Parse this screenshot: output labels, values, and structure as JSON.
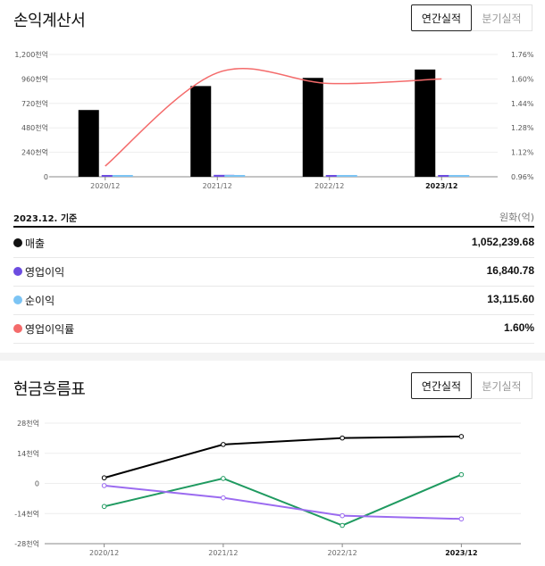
{
  "income": {
    "title": "손익계산서",
    "toggle": {
      "annual": "연간실적",
      "quarterly": "분기실적"
    },
    "ref_date": "2023.12. 기준",
    "unit": "원화(억)",
    "rows": [
      {
        "label": "매출",
        "value": "1,052,239.68",
        "color": "#111111"
      },
      {
        "label": "영업이익",
        "value": "16,840.78",
        "color": "#6c4ce0"
      },
      {
        "label": "순이익",
        "value": "13,115.60",
        "color": "#7cc4f4"
      },
      {
        "label": "영업이익률",
        "value": "1.60%",
        "color": "#f46b6b"
      }
    ]
  },
  "cash": {
    "title": "현금흐름표",
    "toggle": {
      "annual": "연간실적",
      "quarterly": "분기실적"
    }
  },
  "chart_data": [
    {
      "type": "bar",
      "categories": [
        "2020/12",
        "2021/12",
        "2022/12",
        "2023/12"
      ],
      "highlight_category": "2023/12",
      "y_ticks": [
        "0",
        "240천억",
        "480천억",
        "720천억",
        "960천억",
        "1,200천억"
      ],
      "y_tick_values": [
        0,
        240000,
        480000,
        720000,
        960000,
        1200000
      ],
      "ylim": [
        0,
        1200000
      ],
      "y2_ticks": [
        "0.96%",
        "1.12%",
        "1.28%",
        "1.44%",
        "1.60%",
        "1.76%"
      ],
      "y2_tick_values": [
        0.96,
        1.12,
        1.28,
        1.44,
        1.6,
        1.76
      ],
      "y2lim": [
        0.96,
        1.76
      ],
      "series": [
        {
          "name": "매출",
          "axis": "left",
          "color": "#000000",
          "values": [
            655000,
            890000,
            970000,
            1052239.68
          ]
        },
        {
          "name": "영업이익",
          "axis": "left",
          "color": "#6c4ce0",
          "values": [
            9000,
            19000,
            17000,
            16840.78
          ]
        },
        {
          "name": "순이익",
          "axis": "left",
          "color": "#7cc4f4",
          "values": [
            6000,
            11000,
            10000,
            13115.6
          ]
        },
        {
          "name": "영업이익률",
          "axis": "right",
          "type": "line",
          "color": "#f46b6b",
          "values": [
            1.03,
            1.64,
            1.57,
            1.6
          ]
        }
      ]
    },
    {
      "type": "line",
      "categories": [
        "2020/12",
        "2021/12",
        "2022/12",
        "2023/12"
      ],
      "highlight_category": "2023/12",
      "y_ticks": [
        "28천억",
        "14천억",
        "0",
        "-14천억",
        "-28천억"
      ],
      "y_tick_values": [
        28000,
        14000,
        0,
        -14000,
        -28000
      ],
      "ylim": [
        -28000,
        28000
      ],
      "series": [
        {
          "color": "#000000",
          "values": [
            2600,
            18100,
            21100,
            21800
          ]
        },
        {
          "color": "#1f9a60",
          "values": [
            -10700,
            2300,
            -19500,
            4100
          ]
        },
        {
          "color": "#9b6bf0",
          "values": [
            -1000,
            -6700,
            -15000,
            -16500
          ]
        }
      ]
    }
  ]
}
